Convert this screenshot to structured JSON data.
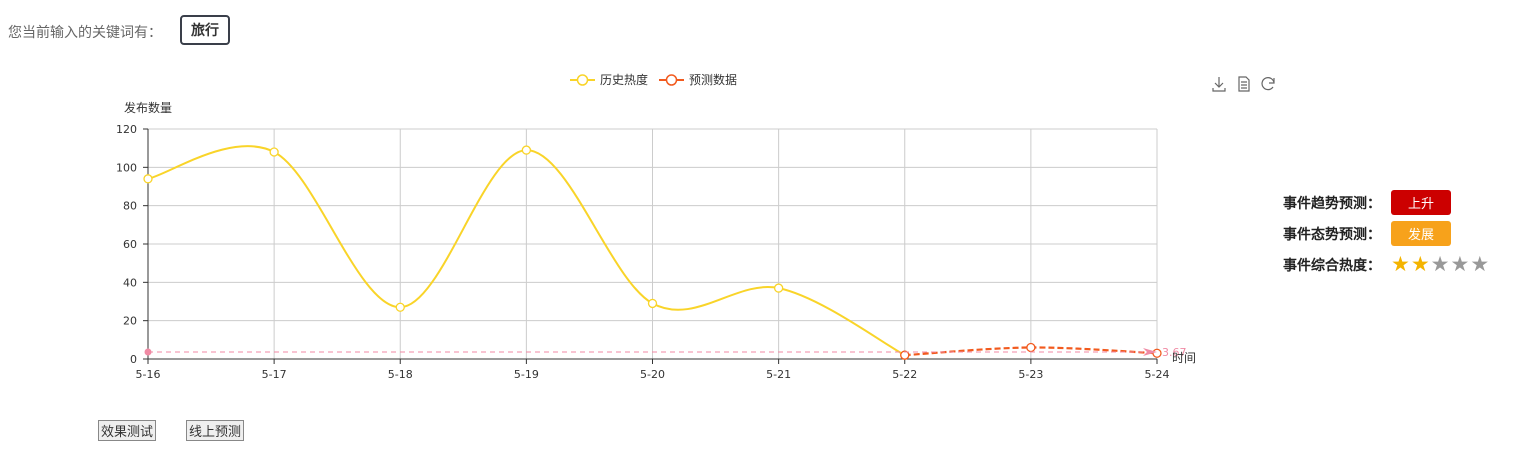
{
  "keyword": {
    "label": "您当前输入的关键词有：",
    "tag": "旅行"
  },
  "toolbox": [
    "download-icon",
    "data-view-icon",
    "refresh-icon"
  ],
  "chart_data": {
    "type": "line",
    "legend": [
      "历史热度",
      "预测数据"
    ],
    "legend_position": "top-center",
    "ylabel": "发布数量",
    "xlabel": "时间",
    "categories": [
      "5-16",
      "5-17",
      "5-18",
      "5-19",
      "5-20",
      "5-21",
      "5-22",
      "5-23",
      "5-24"
    ],
    "yticks": [
      "0",
      "20",
      "40",
      "60",
      "80",
      "100",
      "120"
    ],
    "ylim": [
      0,
      120
    ],
    "grid": true,
    "series": [
      {
        "name": "历史热度",
        "color": "#f9d429",
        "smooth": true,
        "dashed": false,
        "values": [
          94,
          108,
          27,
          109,
          29,
          37,
          2,
          null,
          null
        ]
      },
      {
        "name": "预测数据",
        "color": "#f25a1e",
        "smooth": true,
        "dashed": true,
        "values": [
          null,
          null,
          null,
          null,
          null,
          null,
          2,
          6,
          3
        ]
      }
    ],
    "mark_line": {
      "value": 3.67,
      "label": "3.67",
      "color": "#f08aa4"
    }
  },
  "predictions": {
    "trend": {
      "label": "事件趋势预测：",
      "value": "上升",
      "color": "#cc0000"
    },
    "state": {
      "label": "事件态势预测：",
      "value": "发展",
      "color": "#f7a21b"
    },
    "heat": {
      "label": "事件综合热度：",
      "stars": 2,
      "max_stars": 5,
      "on_color": "#f4b400",
      "off_color": "#999999"
    }
  },
  "buttons": {
    "test": "效果测试",
    "online": "线上预测"
  }
}
